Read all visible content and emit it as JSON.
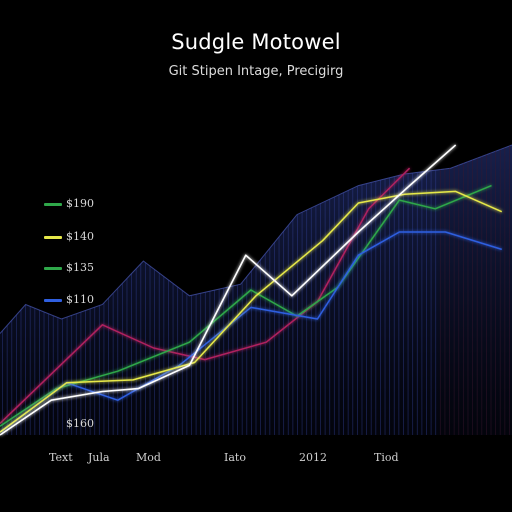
{
  "title": "Sudgle Motowel",
  "subtitle": "Git Stipen Intage, Precigirg",
  "annotation": "$160",
  "colors": {
    "background": "#000000",
    "fill": "#1e2a66",
    "white": "#ffffff",
    "yellow": "#e6e84a",
    "green": "#2fa84a",
    "blue": "#2f5fe0",
    "magenta": "#b0205f"
  },
  "chart_data": {
    "type": "line",
    "title": "Sudgle Motowel",
    "subtitle": "Git Stipen Intage, Precigirg",
    "x_ticks": [
      "Text",
      "Jula",
      "Mod",
      "Iato",
      "2012",
      "Tiod"
    ],
    "legend": [
      {
        "label": "$190",
        "color": "#2fa84a"
      },
      {
        "label": "$140",
        "color": "#e6e84a"
      },
      {
        "label": "$135",
        "color": "#2fa84a"
      },
      {
        "label": "$110",
        "color": "#2f5fe0"
      }
    ],
    "legend_position": "left",
    "y_range": [
      0,
      100
    ],
    "x_range": [
      0,
      100
    ],
    "grid": false,
    "series": [
      {
        "color": "#ffffff",
        "x": [
          0,
          10,
          20,
          27,
          37,
          48,
          57,
          70,
          80,
          89
        ],
        "y": [
          0,
          12,
          15,
          16,
          24,
          62,
          48,
          70,
          86,
          100
        ]
      },
      {
        "color": "#e6e84a",
        "x": [
          0,
          13,
          26,
          38,
          50,
          63,
          70,
          79,
          89,
          98
        ],
        "y": [
          1,
          18,
          19,
          25,
          48,
          67,
          80,
          83,
          84,
          77
        ]
      },
      {
        "color": "#2fa84a",
        "x": [
          0,
          11,
          23,
          37,
          49,
          58,
          66,
          78,
          85,
          96
        ],
        "y": [
          3,
          16,
          22,
          32,
          50,
          41,
          51,
          81,
          78,
          86
        ]
      },
      {
        "color": "#2f5fe0",
        "x": [
          0,
          13,
          23,
          35,
          49,
          62,
          70,
          78,
          87,
          98
        ],
        "y": [
          1,
          18,
          12,
          24,
          44,
          40,
          62,
          70,
          70,
          64
        ]
      },
      {
        "color": "#b0205f",
        "x": [
          0,
          20,
          30,
          40,
          52,
          62,
          72,
          80
        ],
        "y": [
          4,
          38,
          30,
          26,
          32,
          46,
          78,
          92
        ]
      },
      {
        "color": "#1e2a66",
        "role": "area",
        "x": [
          0,
          5,
          12,
          20,
          28,
          37,
          47,
          58,
          70,
          79,
          88,
          100
        ],
        "y": [
          35,
          45,
          40,
          45,
          60,
          48,
          52,
          76,
          86,
          90,
          92,
          100
        ]
      }
    ]
  }
}
